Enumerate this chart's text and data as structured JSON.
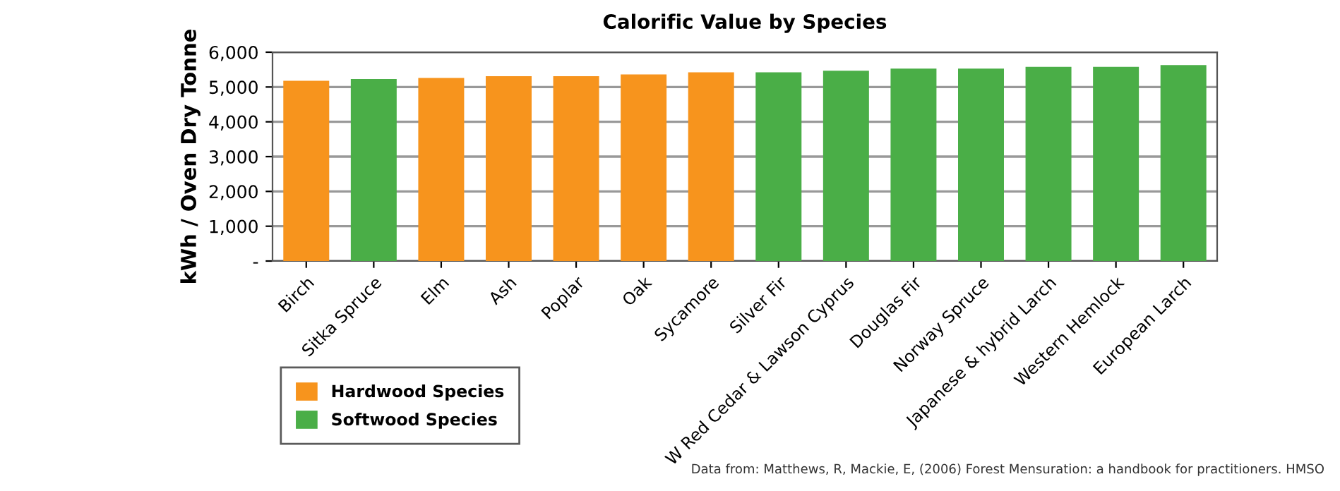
{
  "chart_data": {
    "type": "bar",
    "title": "Calorific Value by Species",
    "ylabel": "kWh / Oven Dry Tonne",
    "categories": [
      "Birch",
      "Sitka Spruce",
      "Elm",
      "Ash",
      "Poplar",
      "Oak",
      "Sycamore",
      "Silver Fir",
      "W Red Cedar & Lawson Cyprus",
      "Douglas Fir",
      "Norway Spruce",
      "Japanese & hybrid Larch",
      "Western Hemlock",
      "European Larch"
    ],
    "series": [
      {
        "name": "Hardwood Species",
        "color": "#f7941d",
        "values": [
          5180,
          null,
          5260,
          5310,
          5310,
          5360,
          5420,
          null,
          null,
          null,
          null,
          null,
          null,
          null
        ]
      },
      {
        "name": "Softwood Species",
        "color": "#4aae47",
        "values": [
          null,
          5230,
          null,
          null,
          null,
          null,
          null,
          5420,
          5470,
          5530,
          5530,
          5580,
          5580,
          5630
        ]
      }
    ],
    "ylim": [
      0,
      6000
    ],
    "yticks": [
      {
        "value": 0,
        "label": "-"
      },
      {
        "value": 1000,
        "label": "1,000"
      },
      {
        "value": 2000,
        "label": "2,000"
      },
      {
        "value": 3000,
        "label": "3,000"
      },
      {
        "value": 4000,
        "label": "4,000"
      },
      {
        "value": 5000,
        "label": "5,000"
      },
      {
        "value": 6000,
        "label": "6,000"
      }
    ],
    "grid": "y",
    "legend": "bottom left",
    "annotations": [
      "Data from: Matthews, R, Mackie, E, (2006) Forest Mensuration: a handbook for practitioners. HMSO"
    ]
  }
}
